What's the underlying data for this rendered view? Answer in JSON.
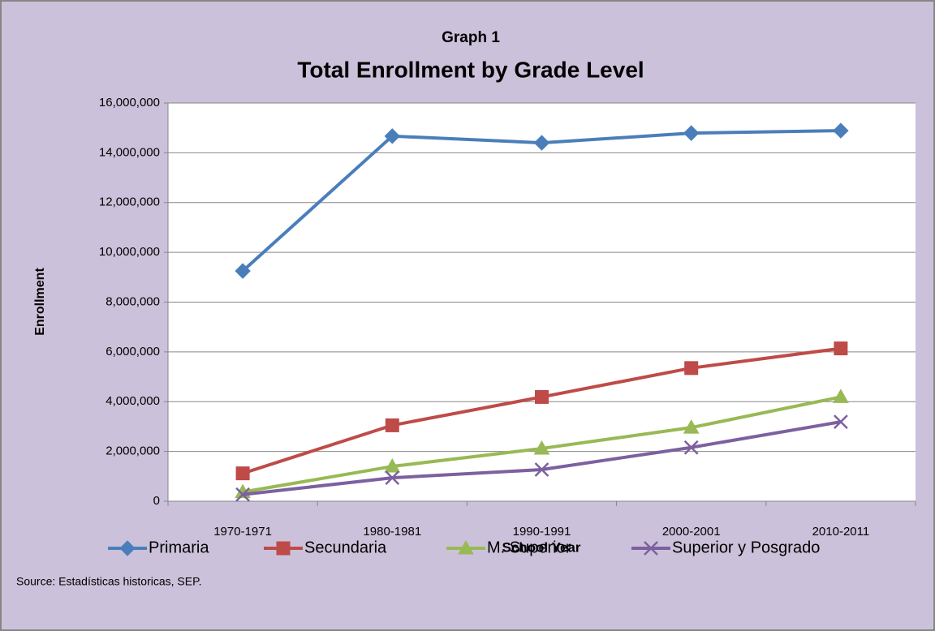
{
  "chart_data": {
    "type": "line",
    "supertitle": "Graph 1",
    "title": "Total Enrollment by Grade Level",
    "xlabel": "School Year",
    "ylabel": "Enrollment",
    "source": "Source: Estadísticas historicas, SEP.",
    "categories": [
      "1970-1971",
      "1980-1981",
      "1990-1991",
      "2000-2001",
      "2010-2011"
    ],
    "series": [
      {
        "name": "Primaria",
        "color": "#4a7ebb",
        "marker": "diamond",
        "values": [
          9250000,
          14670000,
          14400000,
          14790000,
          14890000
        ]
      },
      {
        "name": "Secundaria",
        "color": "#be4b48",
        "marker": "square",
        "values": [
          1120000,
          3050000,
          4190000,
          5350000,
          6140000
        ]
      },
      {
        "name": "M. Superior",
        "color": "#98b954",
        "marker": "triangle",
        "values": [
          370000,
          1400000,
          2120000,
          2960000,
          4190000
        ]
      },
      {
        "name": "Superior y Posgrado",
        "color": "#7d60a0",
        "marker": "x",
        "values": [
          270000,
          940000,
          1270000,
          2160000,
          3190000
        ]
      }
    ],
    "ylim": [
      0,
      16000000
    ],
    "yticks": [
      0,
      {
        "value": 2000000,
        "label": "2,000,000"
      },
      {
        "value": 4000000,
        "label": "4,000,000"
      },
      {
        "value": 6000000,
        "label": "6,000,000"
      },
      {
        "value": 8000000,
        "label": "8,000,000"
      },
      {
        "value": 10000000,
        "label": "10,000,000"
      },
      {
        "value": 12000000,
        "label": "12,000,000"
      },
      {
        "value": 14000000,
        "label": "14,000,000"
      },
      {
        "value": 16000000,
        "label": "16,000,000"
      }
    ],
    "grid": true,
    "legend": "bottom"
  }
}
